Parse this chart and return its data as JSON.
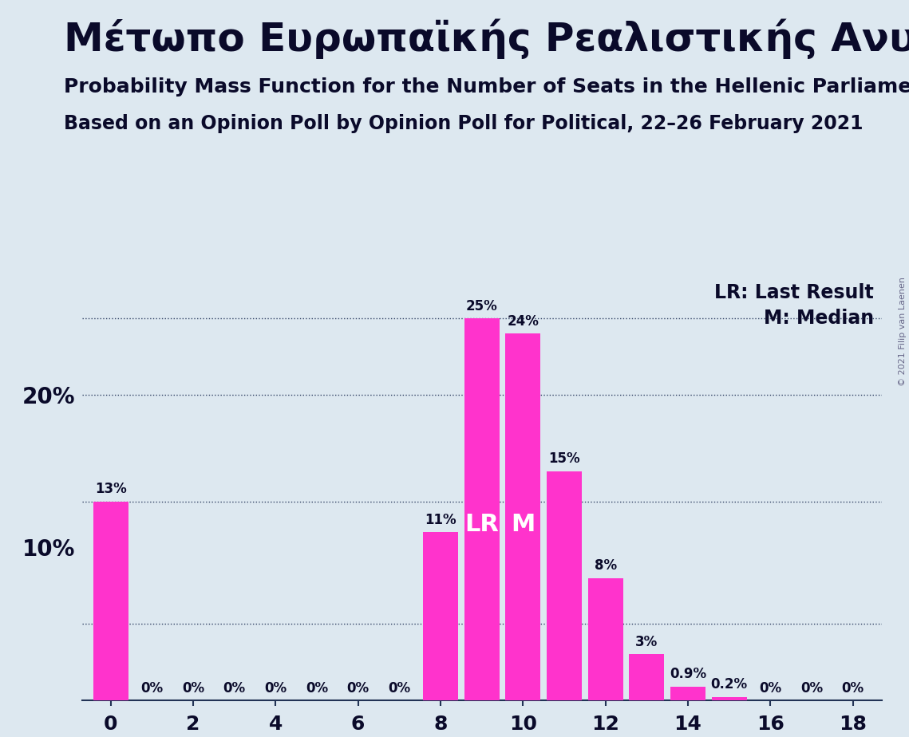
{
  "title": "Μέτωπο Ευρωπαϊκής Ρεαλιστικής Ανυπακοής",
  "subtitle1": "Probability Mass Function for the Number of Seats in the Hellenic Parliament",
  "subtitle2": "Based on an Opinion Poll by Opinion Poll for Political, 22–26 February 2021",
  "copyright": "© 2021 Filip van Laenen",
  "seats": [
    0,
    1,
    2,
    3,
    4,
    5,
    6,
    7,
    8,
    9,
    10,
    11,
    12,
    13,
    14,
    15,
    16,
    17,
    18
  ],
  "probabilities": [
    13,
    0,
    0,
    0,
    0,
    0,
    0,
    0,
    11,
    25,
    24,
    15,
    8,
    3,
    0.9,
    0.2,
    0,
    0,
    0
  ],
  "bar_color": "#FF33CC",
  "background_color": "#DDE8F0",
  "text_color": "#0a0a2a",
  "ylim": [
    0,
    28
  ],
  "xlim": [
    -0.7,
    18.7
  ],
  "xtick_positions": [
    0,
    2,
    4,
    6,
    8,
    10,
    12,
    14,
    16,
    18
  ],
  "ytick_positions": [
    0,
    10,
    20
  ],
  "ytick_labels": [
    "",
    "10%",
    "20%"
  ],
  "dotted_line_y": [
    5,
    13,
    20,
    25
  ],
  "lr_seat": 9,
  "median_seat": 10,
  "legend_lr": "LR: Last Result",
  "legend_m": "M: Median",
  "label_fontsize": 13,
  "bar_label_fontsize": 12,
  "lr_m_fontsize": 22,
  "ytick_fontsize": 20,
  "xtick_fontsize": 18,
  "title_fontsize": 36,
  "subtitle1_fontsize": 18,
  "subtitle2_fontsize": 17,
  "legend_fontsize": 17,
  "copyright_fontsize": 8
}
